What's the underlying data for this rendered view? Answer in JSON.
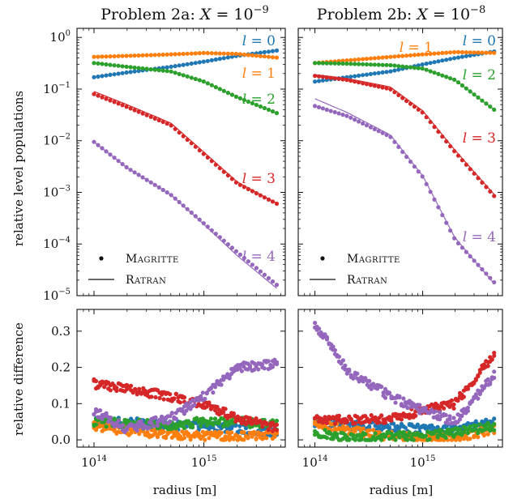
{
  "chart_data": [
    {
      "type": "scatter",
      "panel": "top-left",
      "title": "Problem 2a: X = 10⁻⁹",
      "title_prefix": "Problem 2a: ",
      "title_var": "X",
      "title_eq": " = 10",
      "title_exp": "−9",
      "xlabel": "",
      "ylabel": "relative level populations",
      "x_scale": "log",
      "y_scale": "log",
      "xlim": [
        70000000000000,
        5500000000000000
      ],
      "ylim": [
        1e-05,
        1.5
      ],
      "legend": {
        "placement": "bottom-left",
        "markers_label": "Magritte",
        "line_label": "Ratran"
      },
      "series": [
        {
          "name": "l = 0",
          "label_var": "l",
          "label_eq": " = 0",
          "color": "#1f77b4",
          "x": [
            100000000000000.0,
            200000000000000.0,
            500000000000000.0,
            1000000000000000.0,
            2000000000000000.0,
            5000000000000000.0
          ],
          "magritte": [
            0.17,
            0.21,
            0.27,
            0.34,
            0.44,
            0.57
          ],
          "ratran": [
            0.17,
            0.21,
            0.27,
            0.34,
            0.44,
            0.57
          ]
        },
        {
          "name": "l = 1",
          "label_var": "l",
          "label_eq": " = 1",
          "color": "#ff7f0e",
          "x": [
            100000000000000.0,
            200000000000000.0,
            500000000000000.0,
            1000000000000000.0,
            2000000000000000.0,
            5000000000000000.0
          ],
          "magritte": [
            0.42,
            0.44,
            0.47,
            0.5,
            0.48,
            0.4
          ],
          "ratran": [
            0.42,
            0.44,
            0.47,
            0.5,
            0.48,
            0.4
          ]
        },
        {
          "name": "l = 2",
          "label_var": "l",
          "label_eq": " = 2",
          "color": "#2ca02c",
          "x": [
            100000000000000.0,
            200000000000000.0,
            500000000000000.0,
            1000000000000000.0,
            2000000000000000.0,
            5000000000000000.0
          ],
          "magritte": [
            0.32,
            0.27,
            0.22,
            0.14,
            0.07,
            0.032
          ],
          "ratran": [
            0.32,
            0.27,
            0.22,
            0.14,
            0.07,
            0.032
          ]
        },
        {
          "name": "l = 3",
          "label_var": "l",
          "label_eq": " = 3",
          "color": "#d62728",
          "x": [
            100000000000000.0,
            200000000000000.0,
            500000000000000.0,
            1000000000000000.0,
            2000000000000000.0,
            5000000000000000.0
          ],
          "magritte": [
            0.08,
            0.045,
            0.02,
            0.0055,
            0.0015,
            0.00055
          ],
          "ratran": [
            0.09,
            0.05,
            0.022,
            0.006,
            0.0016,
            0.00056
          ]
        },
        {
          "name": "l = 4",
          "label_var": "l",
          "label_eq": " = 4",
          "color": "#9467bd",
          "x": [
            100000000000000.0,
            200000000000000.0,
            500000000000000.0,
            1000000000000000.0,
            2000000000000000.0,
            5000000000000000.0
          ],
          "magritte": [
            0.0095,
            0.003,
            0.0009,
            0.00025,
            7e-05,
            1.4e-05
          ],
          "ratran": [
            0.0095,
            0.003,
            0.0009,
            0.00024,
            6e-05,
            1.2e-05
          ]
        }
      ]
    },
    {
      "type": "scatter",
      "panel": "top-right",
      "title": "Problem 2b: X = 10⁻⁸",
      "title_prefix": "Problem 2b: ",
      "title_var": "X",
      "title_eq": " = 10",
      "title_exp": "−8",
      "xlabel": "",
      "ylabel": "",
      "x_scale": "log",
      "y_scale": "log",
      "xlim": [
        70000000000000,
        5500000000000000
      ],
      "ylim": [
        1e-05,
        1.5
      ],
      "legend": {
        "placement": "bottom-left",
        "markers_label": "Magritte",
        "line_label": "Ratran"
      },
      "series": [
        {
          "name": "l = 0",
          "label_var": "l",
          "label_eq": " = 0",
          "color": "#1f77b4",
          "x": [
            100000000000000.0,
            200000000000000.0,
            500000000000000.0,
            1000000000000000.0,
            2000000000000000.0,
            5000000000000000.0
          ],
          "magritte": [
            0.14,
            0.17,
            0.22,
            0.3,
            0.4,
            0.55
          ],
          "ratran": [
            0.14,
            0.17,
            0.22,
            0.3,
            0.4,
            0.55
          ]
        },
        {
          "name": "l = 1",
          "label_var": "l",
          "label_eq": " = 1",
          "color": "#ff7f0e",
          "x": [
            100000000000000.0,
            200000000000000.0,
            500000000000000.0,
            1000000000000000.0,
            2000000000000000.0,
            5000000000000000.0
          ],
          "magritte": [
            0.32,
            0.36,
            0.42,
            0.47,
            0.52,
            0.5
          ],
          "ratran": [
            0.32,
            0.36,
            0.42,
            0.47,
            0.52,
            0.5
          ]
        },
        {
          "name": "l = 2",
          "label_var": "l",
          "label_eq": " = 2",
          "color": "#2ca02c",
          "x": [
            100000000000000.0,
            200000000000000.0,
            500000000000000.0,
            1000000000000000.0,
            2000000000000000.0,
            5000000000000000.0
          ],
          "magritte": [
            0.32,
            0.31,
            0.29,
            0.25,
            0.15,
            0.035
          ],
          "ratran": [
            0.32,
            0.31,
            0.29,
            0.25,
            0.15,
            0.035
          ]
        },
        {
          "name": "l = 3",
          "label_var": "l",
          "label_eq": " = 3",
          "color": "#d62728",
          "x": [
            100000000000000.0,
            200000000000000.0,
            500000000000000.0,
            1000000000000000.0,
            2000000000000000.0,
            5000000000000000.0
          ],
          "magritte": [
            0.18,
            0.15,
            0.1,
            0.035,
            0.006,
            0.0007
          ],
          "ratran": [
            0.19,
            0.16,
            0.11,
            0.038,
            0.0065,
            0.00075
          ]
        },
        {
          "name": "l = 4",
          "label_var": "l",
          "label_eq": " = 4",
          "color": "#9467bd",
          "x": [
            100000000000000.0,
            200000000000000.0,
            500000000000000.0,
            1000000000000000.0,
            2000000000000000.0,
            5000000000000000.0
          ],
          "magritte": [
            0.047,
            0.03,
            0.012,
            0.002,
            0.00012,
            1.5e-05
          ],
          "ratran": [
            0.065,
            0.035,
            0.013,
            0.0021,
            0.00013,
            1.4e-05
          ]
        }
      ]
    },
    {
      "type": "scatter",
      "panel": "bottom-left",
      "title": "",
      "xlabel": "radius [m]",
      "ylabel": "relative difference",
      "x_scale": "log",
      "y_scale": "linear",
      "xlim": [
        70000000000000,
        5500000000000000
      ],
      "ylim": [
        -0.02,
        0.36
      ],
      "yticks": [
        "0.0",
        "0.1",
        "0.2",
        "0.3"
      ],
      "xticks": [
        {
          "base": "10",
          "exp": "14"
        },
        {
          "base": "10",
          "exp": "15"
        }
      ],
      "series": [
        {
          "name": "l = 0",
          "color": "#1f77b4",
          "x": [
            100000000000000.0,
            200000000000000.0,
            500000000000000.0,
            1000000000000000.0,
            2000000000000000.0,
            5000000000000000.0
          ],
          "y": [
            0.05,
            0.05,
            0.04,
            0.04,
            0.03,
            0.02
          ]
        },
        {
          "name": "l = 1",
          "color": "#ff7f0e",
          "x": [
            100000000000000.0,
            200000000000000.0,
            500000000000000.0,
            1000000000000000.0,
            2000000000000000.0,
            5000000000000000.0
          ],
          "y": [
            0.04,
            0.025,
            0.015,
            0.01,
            0.01,
            0.015
          ]
        },
        {
          "name": "l = 2",
          "color": "#2ca02c",
          "x": [
            100000000000000.0,
            200000000000000.0,
            500000000000000.0,
            1000000000000000.0,
            2000000000000000.0,
            5000000000000000.0
          ],
          "y": [
            0.05,
            0.045,
            0.04,
            0.05,
            0.05,
            0.04
          ]
        },
        {
          "name": "l = 3",
          "color": "#d62728",
          "x": [
            100000000000000.0,
            200000000000000.0,
            500000000000000.0,
            1000000000000000.0,
            2000000000000000.0,
            5000000000000000.0
          ],
          "y": [
            0.155,
            0.14,
            0.12,
            0.1,
            0.06,
            0.03
          ]
        },
        {
          "name": "l = 4",
          "color": "#9467bd",
          "x": [
            100000000000000.0,
            200000000000000.0,
            500000000000000.0,
            1000000000000000.0,
            2000000000000000.0,
            5000000000000000.0
          ],
          "y": [
            0.08,
            0.03,
            0.06,
            0.12,
            0.2,
            0.21
          ]
        }
      ]
    },
    {
      "type": "scatter",
      "panel": "bottom-right",
      "title": "",
      "xlabel": "radius [m]",
      "ylabel": "",
      "x_scale": "log",
      "y_scale": "linear",
      "xlim": [
        70000000000000,
        5500000000000000
      ],
      "ylim": [
        -0.02,
        0.36
      ],
      "xticks": [
        {
          "base": "10",
          "exp": "14"
        },
        {
          "base": "10",
          "exp": "15"
        }
      ],
      "series": [
        {
          "name": "l = 0",
          "color": "#1f77b4",
          "x": [
            100000000000000.0,
            200000000000000.0,
            500000000000000.0,
            1000000000000000.0,
            2000000000000000.0,
            5000000000000000.0
          ],
          "y": [
            0.05,
            0.04,
            0.035,
            0.03,
            0.03,
            0.05
          ]
        },
        {
          "name": "l = 1",
          "color": "#ff7f0e",
          "x": [
            100000000000000.0,
            200000000000000.0,
            500000000000000.0,
            1000000000000000.0,
            2000000000000000.0,
            5000000000000000.0
          ],
          "y": [
            0.05,
            0.025,
            0.01,
            0.005,
            0.005,
            0.03
          ]
        },
        {
          "name": "l = 2",
          "color": "#2ca02c",
          "x": [
            100000000000000.0,
            200000000000000.0,
            500000000000000.0,
            1000000000000000.0,
            2000000000000000.0,
            5000000000000000.0
          ],
          "y": [
            0.02,
            0.005,
            0.01,
            0.01,
            0.02,
            0.04
          ]
        },
        {
          "name": "l = 3",
          "color": "#d62728",
          "x": [
            100000000000000.0,
            200000000000000.0,
            500000000000000.0,
            1000000000000000.0,
            2000000000000000.0,
            5000000000000000.0
          ],
          "y": [
            0.06,
            0.055,
            0.06,
            0.08,
            0.1,
            0.25
          ]
        },
        {
          "name": "l = 4",
          "color": "#9467bd",
          "x": [
            100000000000000.0,
            200000000000000.0,
            500000000000000.0,
            1000000000000000.0,
            2000000000000000.0,
            5000000000000000.0
          ],
          "y": [
            0.32,
            0.19,
            0.12,
            0.08,
            0.05,
            0.19
          ]
        }
      ]
    }
  ]
}
